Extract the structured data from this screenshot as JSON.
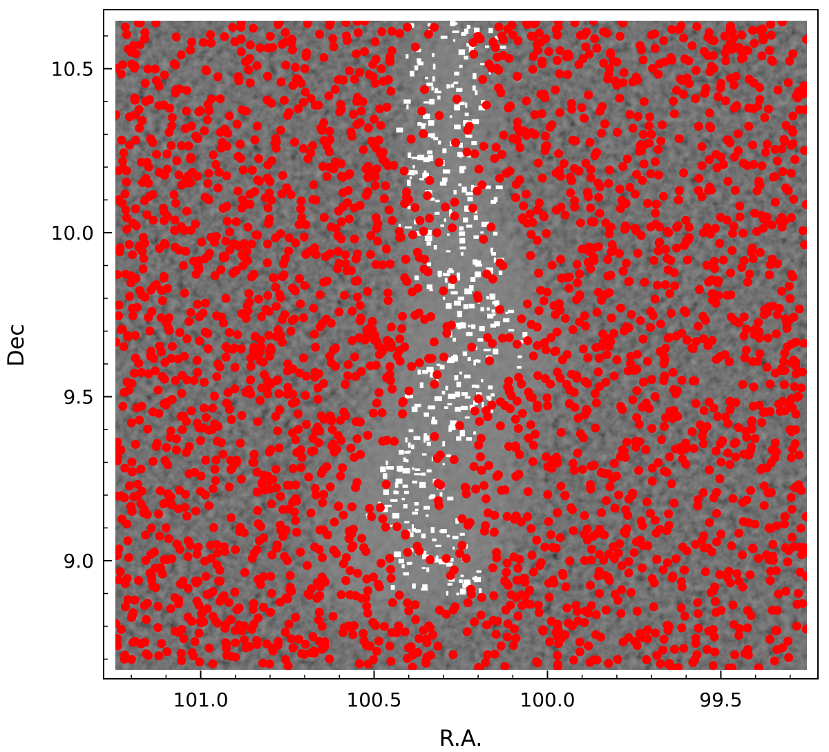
{
  "chart_data": {
    "type": "scatter",
    "title": "",
    "xlabel": "R.A.",
    "ylabel": "Dec",
    "xlim": [
      101.28,
      99.22
    ],
    "ylim": [
      8.64,
      10.68
    ],
    "x_inverted": true,
    "x_ticks": [
      "101.0",
      "100.5",
      "100.0",
      "99.5"
    ],
    "x_tick_values": [
      101.0,
      100.5,
      100.0,
      99.5
    ],
    "y_ticks": [
      "9.0",
      "9.5",
      "10.0",
      "10.5"
    ],
    "y_tick_values": [
      9.0,
      9.5,
      10.0,
      10.5
    ],
    "grid": false,
    "background_image": "grayscale extinction map with bright filament along R.A. ~100.3",
    "marker_color": "#ff0000",
    "background_color": "#3d3d3d",
    "filament_color": "#ffffff",
    "series": [
      {
        "points_description": "dense field of red circular markers; representative sample",
        "x": [
          101.2,
          101.15,
          101.05,
          100.95,
          100.85,
          100.75,
          100.65,
          100.55,
          100.4,
          100.2,
          100.05,
          99.95,
          99.85,
          99.7,
          99.55,
          99.4,
          99.3,
          101.1,
          100.9,
          100.7,
          100.45,
          99.8,
          99.6,
          99.35,
          101.22,
          100.98,
          100.78,
          100.58,
          100.12,
          99.9,
          99.65,
          99.45
        ],
        "y": [
          10.55,
          10.2,
          9.9,
          9.6,
          9.3,
          9.0,
          8.8,
          10.4,
          10.1,
          9.8,
          9.5,
          9.2,
          8.9,
          10.3,
          10.0,
          9.7,
          9.4,
          9.1,
          8.75,
          10.5,
          9.65,
          10.45,
          9.35,
          9.05,
          8.7,
          10.15,
          9.55,
          10.6,
          8.85,
          9.95,
          8.8,
          10.25
        ]
      }
    ]
  }
}
